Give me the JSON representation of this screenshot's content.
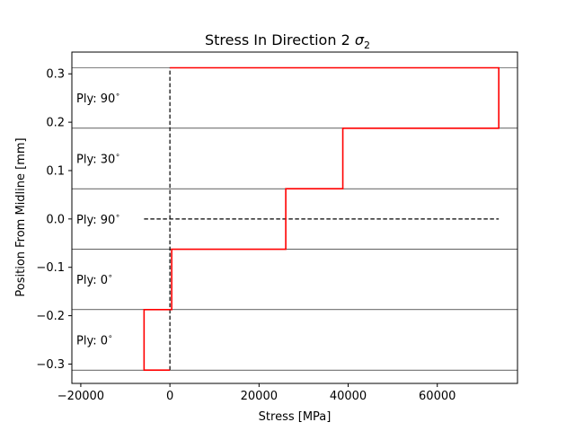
{
  "chart_data": {
    "type": "line",
    "title": "Stress In Direction 2 ",
    "title_symbol": "σ",
    "title_subscript": "2",
    "xlabel": "Stress [MPa]",
    "ylabel": "Position From Midline [mm]",
    "xlim": [
      -22000,
      78000
    ],
    "ylim": [
      -0.34,
      0.345
    ],
    "xticks": [
      -20000,
      0,
      20000,
      40000,
      60000
    ],
    "xtick_labels": [
      "−20000",
      "0",
      "20000",
      "40000",
      "60000"
    ],
    "yticks": [
      -0.3,
      -0.2,
      -0.1,
      0.0,
      0.1,
      0.2,
      0.3
    ],
    "ytick_labels": [
      "−0.3",
      "−0.2",
      "−0.1",
      "0.0",
      "0.1",
      "0.2",
      "0.3"
    ],
    "ply_boundaries": [
      -0.3125,
      -0.1875,
      -0.0625,
      0.0625,
      0.1875,
      0.3125
    ],
    "plies": [
      {
        "label": "Ply: 0",
        "deg": "∘",
        "y": -0.25
      },
      {
        "label": "Ply: 0",
        "deg": "∘",
        "y": -0.125
      },
      {
        "label": "Ply: 90",
        "deg": "∘",
        "y": 0.0
      },
      {
        "label": "Ply: 30",
        "deg": "∘",
        "y": 0.125
      },
      {
        "label": "Ply: 90",
        "deg": "∘",
        "y": 0.25
      }
    ],
    "series": [
      {
        "color": "#ff0000",
        "points": [
          [
            0,
            -0.3125
          ],
          [
            -5800,
            -0.3125
          ],
          [
            -5800,
            -0.1875
          ],
          [
            400,
            -0.1875
          ],
          [
            400,
            -0.0625
          ],
          [
            26000,
            -0.0625
          ],
          [
            26000,
            0.0625
          ],
          [
            38800,
            0.0625
          ],
          [
            38800,
            0.1875
          ],
          [
            73800,
            0.1875
          ],
          [
            73800,
            0.3125
          ],
          [
            0,
            0.3125
          ]
        ]
      }
    ],
    "reference_lines": [
      {
        "type": "vertical",
        "x": 0,
        "y_range": [
          -0.3125,
          0.3125
        ],
        "style": "dashed",
        "color": "#000000"
      },
      {
        "type": "horizontal",
        "y": 0,
        "x_range": [
          -5800,
          73800
        ],
        "style": "dashed",
        "color": "#000000"
      }
    ],
    "grid": false,
    "legend": "none"
  }
}
